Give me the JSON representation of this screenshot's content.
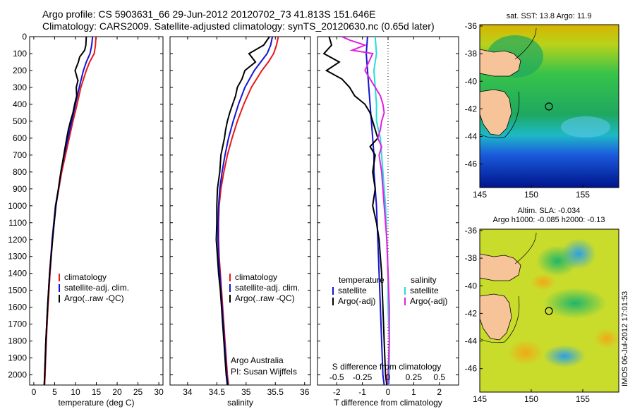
{
  "header": {
    "line1": "Argo profile: CS 5903631_66 29-Jun-2012 20120702_73 41.813S 151.646E",
    "line2": "Climatology: CARS2009. Satellite-adjusted climatology: synTS_20120630.nc (0.65d later)"
  },
  "colors": {
    "climatology": "#e8191a",
    "satellite": "#1414d4",
    "argo": "#000000",
    "sat_salinity": "#22dddd",
    "argo_salinity": "#e020e0"
  },
  "depth_axis": {
    "ticks": [
      0,
      100,
      200,
      300,
      400,
      500,
      600,
      700,
      800,
      900,
      1000,
      1100,
      1200,
      1300,
      1400,
      1500,
      1600,
      1700,
      1800,
      1900,
      2000
    ],
    "range": [
      0,
      2060
    ]
  },
  "chart_data": [
    {
      "type": "line",
      "xlabel": "temperature (deg C)",
      "xlim": [
        -1,
        31
      ],
      "xticks": [
        0,
        5,
        10,
        15,
        20,
        25,
        30
      ],
      "legend": {
        "placement": "bottom-left",
        "entries": [
          "climatology",
          "satellite-adj. clim.",
          "Argo(..raw -QC)"
        ]
      },
      "series": [
        {
          "name": "climatology",
          "color": "#e8191a",
          "depth": [
            0,
            50,
            100,
            150,
            200,
            300,
            400,
            500,
            600,
            700,
            800,
            900,
            1000,
            1200,
            1400,
            1600,
            1800,
            2000,
            2060
          ],
          "values": [
            14.9,
            14.8,
            14.5,
            13.4,
            12.6,
            11.3,
            10.4,
            9.4,
            8.5,
            7.6,
            6.7,
            6.0,
            5.3,
            4.5,
            3.9,
            3.4,
            3.0,
            2.7,
            2.6
          ]
        },
        {
          "name": "satellite-adj. clim.",
          "color": "#1414d4",
          "depth": [
            0,
            50,
            100,
            150,
            200,
            300,
            400,
            500,
            600,
            700,
            800,
            900,
            1000,
            1200,
            1400,
            1600,
            1800,
            2000,
            2060
          ],
          "values": [
            14.1,
            13.9,
            13.5,
            12.6,
            11.9,
            10.9,
            10.0,
            9.1,
            8.2,
            7.3,
            6.5,
            5.9,
            5.2,
            4.4,
            3.8,
            3.3,
            2.9,
            2.6,
            2.5
          ]
        },
        {
          "name": "Argo(..raw -QC)",
          "color": "#000000",
          "depth": [
            0,
            50,
            80,
            120,
            150,
            200,
            260,
            300,
            350,
            400,
            450,
            500,
            550,
            600,
            700,
            800,
            900,
            1000,
            1100,
            1200,
            1400,
            1600,
            1800,
            2000,
            2060
          ],
          "values": [
            12.6,
            12.5,
            12.2,
            11.0,
            10.7,
            9.9,
            10.6,
            10.2,
            10.3,
            9.8,
            9.4,
            8.8,
            8.3,
            7.9,
            7.2,
            6.5,
            5.9,
            5.3,
            4.9,
            4.5,
            3.8,
            3.3,
            2.9,
            2.6,
            2.5
          ]
        }
      ]
    },
    {
      "type": "line",
      "xlabel": "salinity",
      "xlim": [
        33.7,
        36.1
      ],
      "xticks": [
        34,
        34.5,
        35,
        35.5,
        36
      ],
      "xticklabels": [
        "34",
        "34.5",
        "35",
        "35.5",
        "36"
      ],
      "legend": {
        "placement": "bottom-right",
        "entries": [
          "climatology",
          "satellite-adj. clim.",
          "Argo(..raw -QC)"
        ]
      },
      "annotation": [
        "Argo Australia",
        "PI: Susan Wijffels"
      ],
      "series": [
        {
          "name": "climatology",
          "color": "#e8191a",
          "depth": [
            0,
            50,
            100,
            150,
            200,
            300,
            400,
            500,
            600,
            700,
            800,
            900,
            1000,
            1100,
            1200,
            1300,
            1400,
            1500,
            1600,
            1700,
            1800,
            1900,
            2000,
            2060
          ],
          "values": [
            35.55,
            35.52,
            35.47,
            35.38,
            35.27,
            35.09,
            34.96,
            34.85,
            34.76,
            34.68,
            34.62,
            34.57,
            34.54,
            34.53,
            34.53,
            34.54,
            34.56,
            34.58,
            34.6,
            34.62,
            34.64,
            34.66,
            34.68,
            34.7
          ]
        },
        {
          "name": "satellite-adj. clim.",
          "color": "#1414d4",
          "depth": [
            0,
            50,
            100,
            150,
            200,
            300,
            400,
            500,
            600,
            700,
            800,
            900,
            1000,
            1100,
            1200,
            1300,
            1400,
            1500,
            1600,
            1700,
            1800,
            1900,
            2000,
            2060
          ],
          "values": [
            35.45,
            35.42,
            35.36,
            35.25,
            35.14,
            34.98,
            34.87,
            34.78,
            34.7,
            34.64,
            34.59,
            34.55,
            34.53,
            34.52,
            34.52,
            34.53,
            34.55,
            34.57,
            34.59,
            34.61,
            34.63,
            34.65,
            34.67,
            34.69
          ]
        },
        {
          "name": "Argo(..raw -QC)",
          "color": "#000000",
          "depth": [
            0,
            50,
            100,
            150,
            200,
            250,
            300,
            350,
            400,
            450,
            500,
            550,
            600,
            700,
            800,
            900,
            1000,
            1100,
            1200,
            1300,
            1400,
            1500,
            1600,
            1700,
            1800,
            1900,
            2000,
            2060
          ],
          "values": [
            35.4,
            35.3,
            35.05,
            35.16,
            34.98,
            34.93,
            34.85,
            34.82,
            34.77,
            34.72,
            34.68,
            34.65,
            34.63,
            34.57,
            34.55,
            34.51,
            34.5,
            34.5,
            34.49,
            34.51,
            34.53,
            34.56,
            34.58,
            34.6,
            34.62,
            34.64,
            34.66,
            34.68
          ]
        }
      ]
    },
    {
      "type": "line",
      "xlabel": "T difference from climatology",
      "xlabel_top": "S difference from climatology",
      "xlim": [
        -2.75,
        2.75
      ],
      "xticks": [
        -2,
        -1,
        0,
        1,
        2
      ],
      "top_ticks": [
        -0.5,
        -0.25,
        0,
        0.25,
        0.5
      ],
      "top_ticklabels": [
        "-0.5",
        "-0.25",
        "0",
        "0.25",
        "0.5"
      ],
      "legend": {
        "placement": "bottom",
        "entries": [
          "temperature",
          "satellite",
          "Argo(-adj)",
          "salinity",
          "satellite",
          "Argo(-adj)"
        ]
      },
      "series": [
        {
          "name": "temperature satellite",
          "color": "#1414d4",
          "depth": [
            0,
            100,
            200,
            300,
            400,
            500,
            600,
            700,
            800,
            900,
            1000,
            1200,
            1400,
            1600,
            1800,
            2000,
            2060
          ],
          "values": [
            -0.8,
            -0.85,
            -0.8,
            -0.75,
            -0.7,
            -0.65,
            -0.6,
            -0.55,
            -0.55,
            -0.5,
            -0.45,
            -0.4,
            -0.35,
            -0.3,
            -0.25,
            -0.2,
            -0.15
          ]
        },
        {
          "name": "temperature Argo(-adj)",
          "color": "#000000",
          "depth": [
            0,
            50,
            100,
            150,
            200,
            250,
            300,
            350,
            400,
            450,
            500,
            550,
            600,
            650,
            700,
            800,
            900,
            1000,
            1100,
            1200,
            1300,
            1400,
            1600,
            1800,
            2000,
            2060
          ],
          "values": [
            -2.3,
            -2.2,
            -2.5,
            -1.9,
            -2.4,
            -1.8,
            -1.5,
            -1.3,
            -0.9,
            -0.7,
            -0.6,
            -0.5,
            -0.4,
            -0.7,
            -0.5,
            -0.6,
            -0.5,
            -0.6,
            -0.45,
            -0.35,
            -0.3,
            -0.25,
            -0.2,
            -0.15,
            -0.1,
            -0.05
          ]
        },
        {
          "name": "salinity satellite",
          "color": "#22dddd",
          "depth": [
            0,
            100,
            200,
            300,
            400,
            500,
            600,
            700,
            800,
            900,
            1000,
            1200,
            1400,
            1600,
            1800,
            2000,
            2060
          ],
          "values": [
            -0.5,
            -0.45,
            -0.55,
            -0.5,
            -0.45,
            -0.45,
            -0.3,
            -0.25,
            -0.2,
            -0.15,
            -0.1,
            -0.05,
            0.0,
            0.0,
            0.05,
            0.05,
            0.05
          ]
        },
        {
          "name": "salinity Argo(-adj)",
          "color": "#e020e0",
          "depth": [
            0,
            20,
            50,
            80,
            100,
            150,
            200,
            250,
            300,
            350,
            400,
            450,
            500,
            550,
            600,
            650,
            700,
            800,
            900,
            1000,
            1100,
            1200,
            1400,
            1600,
            1800,
            2000,
            2060
          ],
          "values": [
            -1.8,
            -1.5,
            -0.9,
            -1.4,
            -0.6,
            -0.75,
            -0.9,
            -0.7,
            -0.5,
            -0.3,
            -0.2,
            -0.15,
            -0.25,
            -0.3,
            -0.4,
            -0.25,
            -0.35,
            -0.25,
            -0.2,
            -0.15,
            -0.1,
            -0.05,
            0.0,
            0.05,
            0.05,
            0.0,
            0.0
          ]
        }
      ]
    }
  ],
  "maps": [
    {
      "title": "sat. SST: 13.8 Argo: 11.9",
      "yticks": [
        -36,
        -38,
        -40,
        -42,
        -44,
        -46
      ],
      "xticks": [
        145,
        150,
        155
      ]
    },
    {
      "title_line1": "Altim. SLA: -0.034",
      "title_line2": "Argo h1000: -0.085 h2000: -0.13",
      "yticks": [
        -36,
        -38,
        -40,
        -42,
        -44,
        -46
      ],
      "xticks": [
        145,
        150,
        155
      ]
    }
  ],
  "footer": {
    "imos_stamp": "IMOS 06-Jul-2012 17:01:53"
  }
}
